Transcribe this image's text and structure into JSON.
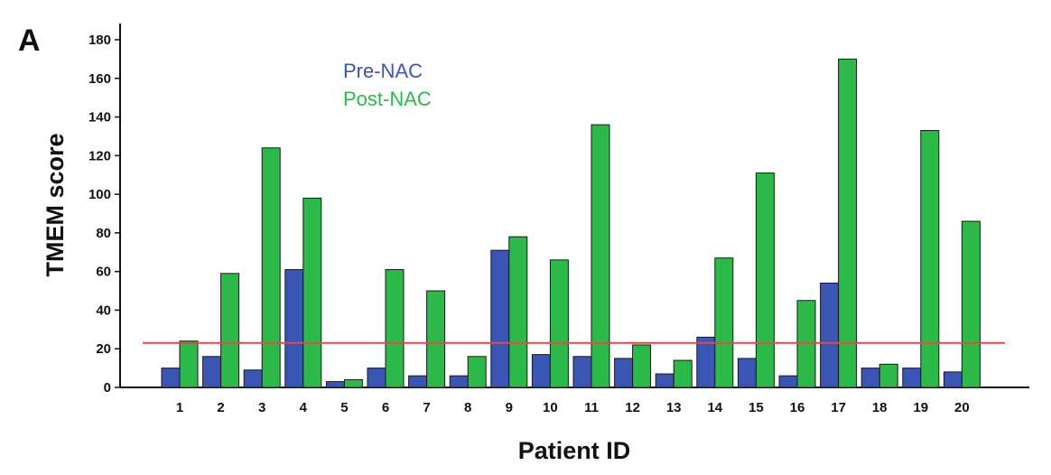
{
  "panel_label": "A",
  "chart_data": {
    "type": "bar",
    "xlabel": "Patient ID",
    "ylabel": "TMEM score",
    "ylim": [
      0,
      180
    ],
    "yticks": [
      0,
      20,
      40,
      60,
      80,
      100,
      120,
      140,
      160,
      180
    ],
    "categories": [
      "1",
      "2",
      "3",
      "4",
      "5",
      "6",
      "7",
      "8",
      "9",
      "10",
      "11",
      "12",
      "13",
      "14",
      "15",
      "16",
      "17",
      "18",
      "19",
      "20"
    ],
    "series": [
      {
        "name": "Pre-NAC",
        "color": "#3a55b4",
        "values": [
          10,
          16,
          9,
          61,
          3,
          10,
          6,
          6,
          71,
          17,
          16,
          15,
          7,
          26,
          15,
          6,
          54,
          10,
          10,
          8
        ]
      },
      {
        "name": "Post-NAC",
        "color": "#2db84a",
        "values": [
          24,
          59,
          124,
          98,
          4,
          61,
          50,
          16,
          78,
          66,
          136,
          22,
          14,
          67,
          111,
          45,
          170,
          12,
          133,
          86
        ]
      }
    ],
    "reference_line": {
      "value": 23,
      "color": "#e8474a"
    },
    "legend_position": "top-left",
    "grid": false
  }
}
